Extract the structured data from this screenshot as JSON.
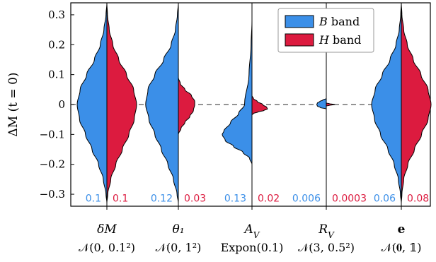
{
  "chart_data": {
    "type": "violin",
    "ylabel": "ΔM (t = 0)",
    "ylim": [
      -0.34,
      0.34
    ],
    "yticks": [
      -0.3,
      -0.2,
      -0.1,
      0,
      0.1,
      0.2,
      0.3
    ],
    "ytick_labels": [
      "−0.3",
      "−0.2",
      "−0.1",
      "0",
      "0.1",
      "0.2",
      "0.3"
    ],
    "zero_line": "dashed",
    "colors": {
      "B": "#3b8fe8",
      "H": "#dc1b3f"
    },
    "legend": {
      "placement": "top-right",
      "entries": [
        {
          "key": "B",
          "prefix": "B",
          "suffix": " band"
        },
        {
          "key": "H",
          "prefix": "H",
          "suffix": " band"
        }
      ]
    },
    "categories": [
      {
        "label": "δM",
        "label_style": "italic",
        "dist": "𝒩(0, 0.1²)",
        "widths": {
          "B": "0.1",
          "H": "0.1"
        },
        "B": {
          "peak": 0.0,
          "scale": 1.0,
          "profile": [
            [
              0.34,
              0
            ],
            [
              0.3,
              0.03
            ],
            [
              0.25,
              0.1
            ],
            [
              0.2,
              0.22
            ],
            [
              0.15,
              0.42
            ],
            [
              0.1,
              0.68
            ],
            [
              0.05,
              0.9
            ],
            [
              0.0,
              1.0
            ],
            [
              -0.05,
              0.92
            ],
            [
              -0.1,
              0.72
            ],
            [
              -0.15,
              0.5
            ],
            [
              -0.2,
              0.28
            ],
            [
              -0.25,
              0.12
            ],
            [
              -0.3,
              0.03
            ],
            [
              -0.33,
              0
            ]
          ]
        },
        "H": {
          "peak": 0.0,
          "scale": 1.0,
          "profile": [
            [
              0.34,
              0
            ],
            [
              0.3,
              0.02
            ],
            [
              0.25,
              0.08
            ],
            [
              0.2,
              0.2
            ],
            [
              0.15,
              0.4
            ],
            [
              0.1,
              0.66
            ],
            [
              0.05,
              0.9
            ],
            [
              0.0,
              1.0
            ],
            [
              -0.05,
              0.92
            ],
            [
              -0.1,
              0.74
            ],
            [
              -0.15,
              0.52
            ],
            [
              -0.2,
              0.3
            ],
            [
              -0.25,
              0.13
            ],
            [
              -0.3,
              0.03
            ],
            [
              -0.33,
              0
            ]
          ]
        }
      },
      {
        "label": "θ₁",
        "label_style": "italic",
        "dist": "𝒩(0, 1²)",
        "widths": {
          "B": "0.12",
          "H": "0.03"
        },
        "B": {
          "peak": 0.0,
          "scale": 1.1,
          "profile": [
            [
              0.34,
              0
            ],
            [
              0.3,
              0.03
            ],
            [
              0.25,
              0.09
            ],
            [
              0.2,
              0.22
            ],
            [
              0.15,
              0.45
            ],
            [
              0.1,
              0.72
            ],
            [
              0.05,
              0.93
            ],
            [
              0.0,
              1.0
            ],
            [
              -0.05,
              0.9
            ],
            [
              -0.1,
              0.72
            ],
            [
              -0.15,
              0.52
            ],
            [
              -0.2,
              0.32
            ],
            [
              -0.25,
              0.15
            ],
            [
              -0.3,
              0.04
            ],
            [
              -0.33,
              0
            ]
          ]
        },
        "H": {
          "peak": 0.0,
          "scale": 1.1,
          "profile": [
            [
              0.09,
              0
            ],
            [
              0.07,
              0.06
            ],
            [
              0.05,
              0.2
            ],
            [
              0.03,
              0.4
            ],
            [
              0.01,
              0.5
            ],
            [
              0.0,
              0.5
            ],
            [
              -0.02,
              0.46
            ],
            [
              -0.04,
              0.35
            ],
            [
              -0.06,
              0.2
            ],
            [
              -0.08,
              0.08
            ],
            [
              -0.1,
              0
            ]
          ]
        }
      },
      {
        "label": "A_V",
        "label_style": "italic",
        "dist": "Expon(0.1)",
        "widths": {
          "B": "0.13",
          "H": "0.02"
        },
        "B": {
          "peak": -0.1,
          "scale": 1.0,
          "profile": [
            [
              0.28,
              0
            ],
            [
              0.2,
              0.03
            ],
            [
              0.1,
              0.1
            ],
            [
              0.0,
              0.25
            ],
            [
              -0.03,
              0.45
            ],
            [
              -0.06,
              0.72
            ],
            [
              -0.09,
              0.95
            ],
            [
              -0.1,
              1.0
            ],
            [
              -0.12,
              0.9
            ],
            [
              -0.14,
              0.62
            ],
            [
              -0.16,
              0.3
            ],
            [
              -0.18,
              0.08
            ],
            [
              -0.2,
              0
            ]
          ]
        },
        "H": {
          "peak": 0.0,
          "scale": 1.0,
          "profile": [
            [
              0.03,
              0
            ],
            [
              0.02,
              0.05
            ],
            [
              0.01,
              0.18
            ],
            [
              0.0,
              0.36
            ],
            [
              -0.01,
              0.5
            ],
            [
              -0.015,
              0.52
            ],
            [
              -0.02,
              0.4
            ],
            [
              -0.025,
              0.2
            ],
            [
              -0.03,
              0.05
            ],
            [
              -0.035,
              0
            ]
          ]
        }
      },
      {
        "label": "R_V",
        "label_style": "italic",
        "dist": "𝒩(3, 0.5²)",
        "widths": {
          "B": "0.006",
          "H": "0.0003"
        },
        "B": {
          "peak": 0.0,
          "scale": 1.0,
          "profile": [
            [
              0.02,
              0
            ],
            [
              0.015,
              0.12
            ],
            [
              0.01,
              0.22
            ],
            [
              0.005,
              0.3
            ],
            [
              0.0,
              0.32
            ],
            [
              -0.005,
              0.3
            ],
            [
              -0.01,
              0.2
            ],
            [
              -0.015,
              0
            ]
          ]
        },
        "H": {
          "peak": 0.0,
          "scale": 1.0,
          "profile": [
            [
              0.005,
              0
            ],
            [
              0.003,
              0.1
            ],
            [
              0.0,
              0.28
            ],
            [
              -0.003,
              0.1
            ],
            [
              -0.005,
              0
            ]
          ]
        }
      },
      {
        "label": "e",
        "label_style": "bold",
        "dist": "𝒩(𝟎, 𝟙)",
        "widths": {
          "B": "0.06",
          "H": "0.08"
        },
        "B": {
          "peak": 0.0,
          "scale": 1.0,
          "profile": [
            [
              0.34,
              0
            ],
            [
              0.3,
              0.02
            ],
            [
              0.25,
              0.07
            ],
            [
              0.2,
              0.18
            ],
            [
              0.15,
              0.38
            ],
            [
              0.1,
              0.64
            ],
            [
              0.05,
              0.88
            ],
            [
              0.0,
              1.0
            ],
            [
              -0.05,
              0.9
            ],
            [
              -0.1,
              0.7
            ],
            [
              -0.15,
              0.45
            ],
            [
              -0.2,
              0.24
            ],
            [
              -0.25,
              0.1
            ],
            [
              -0.3,
              0.03
            ],
            [
              -0.33,
              0
            ]
          ]
        },
        "H": {
          "peak": 0.0,
          "scale": 1.0,
          "profile": [
            [
              0.34,
              0
            ],
            [
              0.3,
              0.02
            ],
            [
              0.25,
              0.08
            ],
            [
              0.2,
              0.2
            ],
            [
              0.15,
              0.4
            ],
            [
              0.1,
              0.66
            ],
            [
              0.05,
              0.9
            ],
            [
              0.0,
              1.0
            ],
            [
              -0.05,
              0.9
            ],
            [
              -0.1,
              0.68
            ],
            [
              -0.15,
              0.44
            ],
            [
              -0.2,
              0.22
            ],
            [
              -0.25,
              0.08
            ],
            [
              -0.3,
              0.02
            ],
            [
              -0.33,
              0
            ]
          ]
        }
      }
    ]
  }
}
